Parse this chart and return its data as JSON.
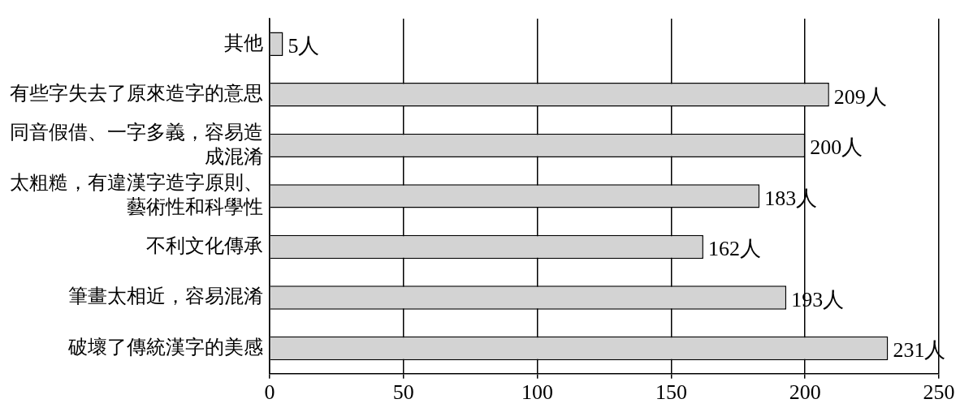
{
  "chart_data": {
    "type": "bar",
    "orientation": "horizontal",
    "categories": [
      "其他",
      "有些字失去了原來造字的意思",
      "同音假借、一字多義，容易造成混淆",
      "太粗糙，有違漢字造字原則、藝術性和科學性",
      "不利文化傳承",
      "筆畫太相近，容易混淆",
      "破壞了傳統漢字的美感"
    ],
    "values": [
      5,
      209,
      200,
      183,
      162,
      193,
      231
    ],
    "value_labels": [
      "5人",
      "209人",
      "200人",
      "183人",
      "162人",
      "193人",
      "231人"
    ],
    "color": "#d3d3d3",
    "xlim": [
      0,
      250
    ],
    "xticks": [
      0,
      50,
      100,
      150,
      200,
      250
    ],
    "grid": "x"
  }
}
